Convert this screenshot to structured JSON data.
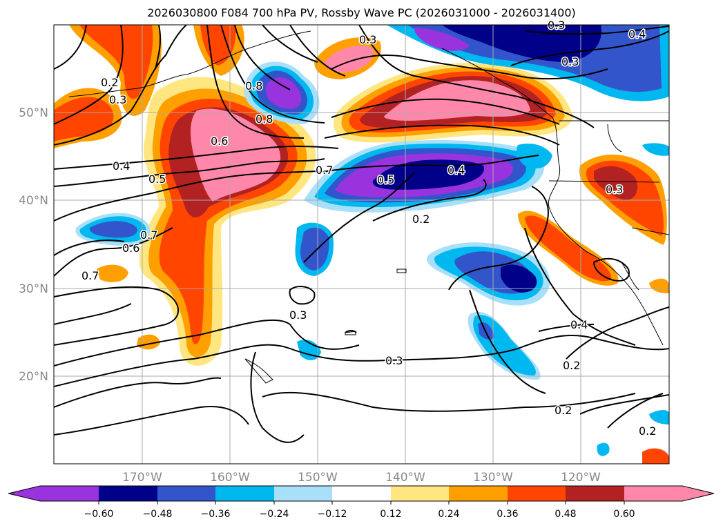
{
  "title": "2026030800 F084 700 hPa PV, Rossby Wave PC (2026031000 - 2026031400)",
  "lat_labels": [
    "50°N",
    "40°N",
    "30°N",
    "20°N"
  ],
  "lon_labels": [
    "170°W",
    "160°W",
    "150°W",
    "140°W",
    "130°W",
    "120°W"
  ],
  "contour_labels": [
    "0.2",
    "0.3",
    "0.3",
    "0.3",
    "0.3",
    "0.3",
    "0.3",
    "0.4",
    "0.4",
    "0.4",
    "0.4",
    "0.5",
    "0.5",
    "0.6",
    "0.6",
    "0.7",
    "0.7",
    "0.7",
    "0.8",
    "0.8",
    "0.2",
    "0.2",
    "0.2",
    "0.2",
    "0.3"
  ],
  "colorbar": {
    "ticks": [
      "−0.60",
      "−0.48",
      "−0.36",
      "−0.24",
      "−0.12",
      "0.12",
      "0.24",
      "0.36",
      "0.48",
      "0.60"
    ],
    "colors": [
      "#9933dd",
      "#000088",
      "#3355cc",
      "#00b8f0",
      "#a8e0fa",
      "#ffffff",
      "#ffe680",
      "#ffa000",
      "#ff4500",
      "#b22222",
      "#ff88aa"
    ]
  },
  "colors": {
    "neg_deep": "#9933dd",
    "neg_navy": "#000088",
    "neg_blue": "#3355cc",
    "neg_cyan": "#00b8f0",
    "neg_light": "#a8e0fa",
    "pos_yellow": "#ffe680",
    "pos_orange": "#ffa000",
    "pos_red": "#ff4500",
    "pos_dark": "#b22222",
    "pos_pink": "#ff88aa"
  }
}
